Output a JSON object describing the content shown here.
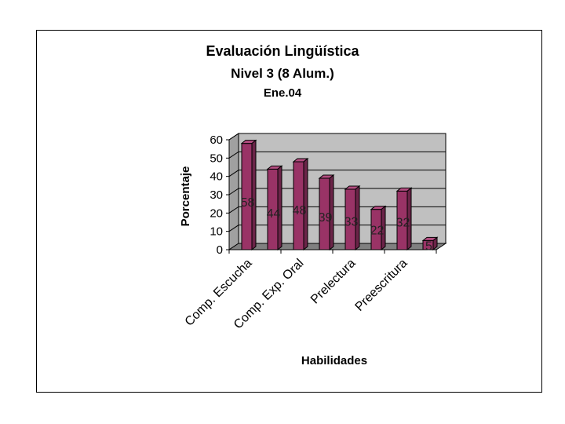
{
  "chart_data": {
    "type": "bar",
    "title": "Evaluación Lingüística",
    "subtitle_line1": "Nivel 3 (8 Alum.)",
    "subtitle_line2": "Ene.04",
    "xlabel": "Habilidades",
    "ylabel": "Porcentaje",
    "categories": [
      "Comp. Escucha",
      "",
      "Comp. Exp. Oral",
      "",
      "Prelectura",
      "",
      "Preescritura",
      ""
    ],
    "values": [
      58,
      44,
      48,
      39,
      33,
      22,
      32,
      5
    ],
    "data_labels": [
      "58",
      "44",
      "48",
      "39",
      "33",
      "22",
      "32",
      "5"
    ],
    "ylim": [
      0,
      60
    ],
    "yticks": [
      0,
      10,
      20,
      30,
      40,
      50,
      60
    ],
    "grid": true,
    "bar_color": "#993366",
    "bar_top_color": "#b34d80",
    "bar_side_color": "#6b2448",
    "wall_color": "#c0c0c0",
    "floor_color": "#808080"
  }
}
